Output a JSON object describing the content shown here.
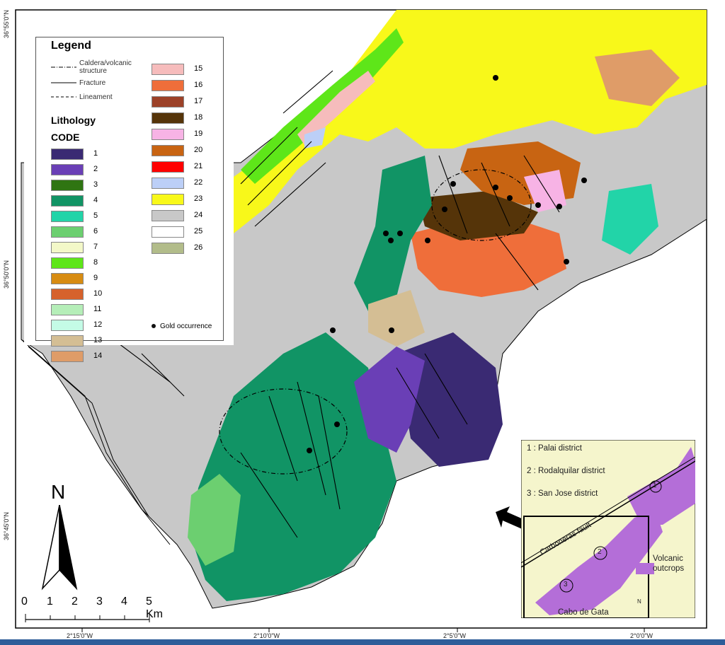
{
  "map": {
    "colors": {
      "sea": "#ffffff",
      "land_grey": "#c8c8c8",
      "volcanic_green": "#1f8f64",
      "outline": "#000000"
    }
  },
  "axis_labels": {
    "top_lat": "36°55'0\"N",
    "mid_lat": "36°50'0\"N",
    "low_lat": "36°45'0\"N",
    "lon1": "2°15'0\"W",
    "lon2": "2°10'0\"W",
    "lon3": "2°5'0\"W",
    "lon4": "2°0'0\"W"
  },
  "legend": {
    "title": "Legend",
    "lines": [
      {
        "label": "Caldera/volcanic structure",
        "style": "dash-dot"
      },
      {
        "label": "Fracture",
        "style": "solid"
      },
      {
        "label": "Lineament",
        "style": "dashed"
      }
    ],
    "lithology_title": "Lithology",
    "code_title": "CODE",
    "items": [
      {
        "code": "1",
        "color": "#3a2a73"
      },
      {
        "code": "2",
        "color": "#6a3fb6"
      },
      {
        "code": "3",
        "color": "#2f7512"
      },
      {
        "code": "4",
        "color": "#119465"
      },
      {
        "code": "5",
        "color": "#22d4a8"
      },
      {
        "code": "6",
        "color": "#6ccf70"
      },
      {
        "code": "7",
        "color": "#f3f8c8"
      },
      {
        "code": "8",
        "color": "#5ee619"
      },
      {
        "code": "9",
        "color": "#d78c12"
      },
      {
        "code": "10",
        "color": "#d6622c"
      },
      {
        "code": "11",
        "color": "#b5eeb8"
      },
      {
        "code": "12",
        "color": "#c4fbe6"
      },
      {
        "code": "13",
        "color": "#d4be94"
      },
      {
        "code": "14",
        "color": "#df9c68"
      },
      {
        "code": "15",
        "color": "#f6bcbc"
      },
      {
        "code": "16",
        "color": "#ef6e3a"
      },
      {
        "code": "17",
        "color": "#9c4128"
      },
      {
        "code": "18",
        "color": "#553409"
      },
      {
        "code": "19",
        "color": "#f7b3e5"
      },
      {
        "code": "20",
        "color": "#c86412"
      },
      {
        "code": "21",
        "color": "#ff0000"
      },
      {
        "code": "22",
        "color": "#bccff7"
      },
      {
        "code": "23",
        "color": "#f8f81a"
      },
      {
        "code": "24",
        "color": "#c8c8c8"
      },
      {
        "code": "25",
        "color": "#ffffff"
      },
      {
        "code": "26",
        "color": "#b2bc8a"
      }
    ],
    "gold_label": "Gold occurrence"
  },
  "scale": {
    "ticks": [
      "0",
      "1",
      "2",
      "3",
      "4",
      "5 Km"
    ]
  },
  "north": {
    "label": "N"
  },
  "inset": {
    "districts": [
      "1 : Palai district",
      "2 : Rodalquilar district",
      "3 : San Jose district"
    ],
    "fault_label": "Carboneras fault",
    "volcanic_label_1": "Volcanic",
    "volcanic_label_2": "outcrops",
    "place_label": "Cabo de Gata",
    "north_label": "N",
    "circle_labels": [
      "1",
      "2",
      "3"
    ],
    "colors": {
      "bg": "#f5f5cc",
      "volcanic": "#b46ed8"
    }
  }
}
